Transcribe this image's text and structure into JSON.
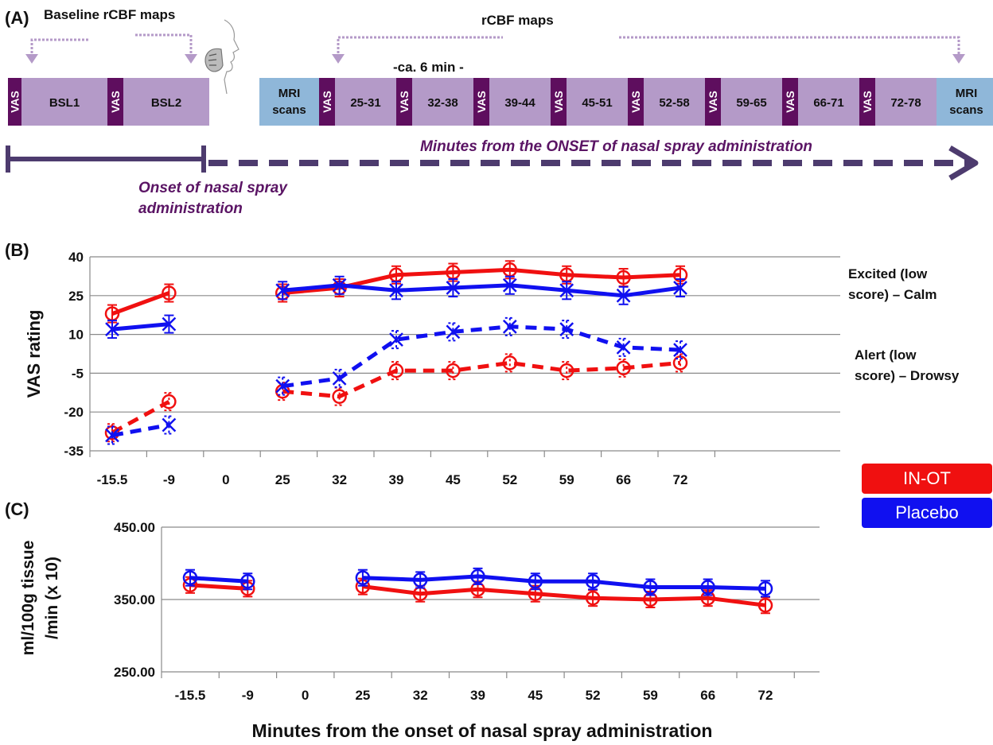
{
  "panel_a": {
    "label": "(A)",
    "baseline_title": "Baseline rCBF maps",
    "rcbf_title": "rCBF maps",
    "duration_note": "-ca. 6 min -",
    "blocks": [
      "VAS",
      "BSL1",
      "VAS",
      "BSL2",
      "MRI scans",
      "VAS",
      "25-31",
      "VAS",
      "32-38",
      "VAS",
      "39-44",
      "VAS",
      "45-51",
      "VAS",
      "52-58",
      "VAS",
      "59-65",
      "VAS",
      "66-71",
      "VAS",
      "72-78",
      "MRI scans"
    ],
    "minutes_caption": "Minutes from the ONSET of nasal spray administration",
    "onset_caption_line1": "Onset of nasal spray",
    "onset_caption_line2": "administration",
    "colors": {
      "vas": "#5e0e5e",
      "block": "#b49ac8",
      "mri": "#8fb7d9",
      "arrow": "#4d3b6e",
      "bracket": "#b49ac8"
    }
  },
  "legend": {
    "items": [
      {
        "name": "IN-OT",
        "color": "#f01010"
      },
      {
        "name": "Placebo",
        "color": "#1010f0"
      }
    ]
  },
  "chart_data": [
    {
      "panel": "(B)",
      "type": "line",
      "ylabel": "VAS rating",
      "ylim": [
        -35,
        40
      ],
      "yticks": [
        "40",
        "25",
        "10",
        "-5",
        "-20",
        "-35"
      ],
      "categories": [
        "-15.5",
        "-9",
        "0",
        "25",
        "32",
        "39",
        "45",
        "52",
        "59",
        "66",
        "72"
      ],
      "annotations": [
        {
          "line1": "Excited (low",
          "line2": "score)  – Calm"
        },
        {
          "line1": "Alert (low",
          "line2": "score) – Drowsy"
        }
      ],
      "grid": true,
      "series": [
        {
          "name": "IN-OT",
          "scale": "Excited (low score) - Calm",
          "style": "solid",
          "color": "#f01010",
          "values": [
            18,
            26,
            null,
            26,
            28,
            33,
            34,
            35,
            33,
            32,
            33
          ]
        },
        {
          "name": "Placebo",
          "scale": "Excited (low score) - Calm",
          "style": "solid",
          "color": "#1010f0",
          "values": [
            12,
            14,
            null,
            27,
            29,
            27,
            28,
            29,
            27,
            25,
            28
          ]
        },
        {
          "name": "IN-OT",
          "scale": "Alert (low score) - Drowsy",
          "style": "dashed",
          "color": "#f01010",
          "values": [
            -28,
            -16,
            null,
            -12,
            -14,
            -4,
            -4,
            -1,
            -4,
            -3,
            -1
          ]
        },
        {
          "name": "Placebo",
          "scale": "Alert (low score) - Drowsy",
          "style": "dashed",
          "color": "#1010f0",
          "values": [
            -29,
            -25,
            null,
            -10,
            -7,
            8,
            11,
            13,
            12,
            5,
            4
          ]
        }
      ]
    },
    {
      "panel": "(C)",
      "type": "line",
      "ylabel_line1": "ml/100g tissue",
      "ylabel_line2": "/min (x 10)",
      "xlabel": "Minutes from the onset of nasal spray administration",
      "ylim": [
        250,
        450
      ],
      "yticks": [
        "450.00",
        "350.00",
        "250.00"
      ],
      "categories": [
        "-15.5",
        "-9",
        "0",
        "25",
        "32",
        "39",
        "45",
        "52",
        "59",
        "66",
        "72"
      ],
      "grid": true,
      "series": [
        {
          "name": "IN-OT",
          "color": "#f01010",
          "values": [
            370,
            365,
            null,
            368,
            358,
            364,
            358,
            352,
            350,
            352,
            342
          ]
        },
        {
          "name": "Placebo",
          "color": "#1010f0",
          "values": [
            380,
            375,
            null,
            380,
            377,
            382,
            375,
            375,
            367,
            367,
            365
          ]
        }
      ]
    }
  ]
}
